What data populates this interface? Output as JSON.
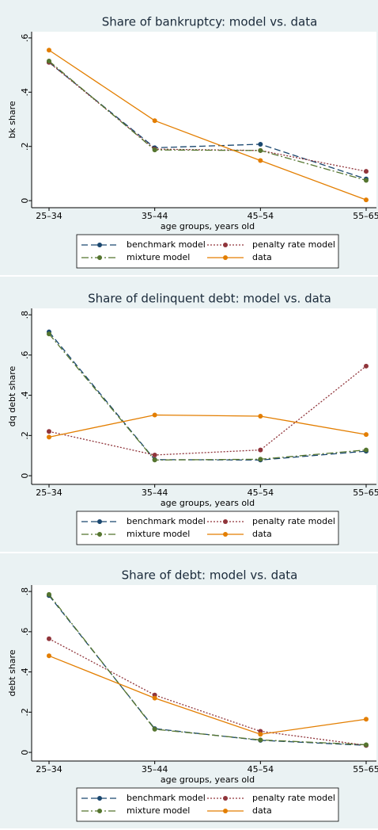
{
  "chart_data": [
    {
      "type": "line",
      "title": "Share of bankruptcy: model vs. data",
      "x_label": "age groups, years old",
      "y_label": "bk share",
      "categories": [
        "25–34",
        "35–44",
        "45–54",
        "55–65"
      ],
      "ylim": [
        -0.026,
        0.623
      ],
      "yticks": [
        0,
        {
          "value": 0.2,
          "label": ".2"
        },
        {
          "value": 0.4,
          "label": ".4"
        },
        {
          "value": 0.6,
          "label": ".6"
        }
      ],
      "series": [
        {
          "name": "benchmark model",
          "color": "#1a476f",
          "dash": "8 4",
          "values": [
            0.51,
            0.195,
            0.208,
            0.08
          ]
        },
        {
          "name": "penalty rate model",
          "color": "#90353b",
          "dash": "2 2",
          "values": [
            0.51,
            0.19,
            0.185,
            0.108
          ]
        },
        {
          "name": "mixture model",
          "color": "#55752f",
          "dash": "9 3 2 3",
          "values": [
            0.515,
            0.187,
            0.185,
            0.075
          ]
        },
        {
          "name": "data",
          "color": "#e37e00",
          "dash": "none",
          "values": [
            0.555,
            0.295,
            0.148,
            0.003
          ]
        }
      ]
    },
    {
      "type": "line",
      "title": "Share of delinquent debt: model vs. data",
      "x_label": "age groups, years old",
      "y_label": "dq debt share",
      "categories": [
        "25–34",
        "35–44",
        "45–54",
        "55–65"
      ],
      "ylim": [
        -0.043,
        0.832
      ],
      "yticks": [
        0,
        {
          "value": 0.2,
          "label": ".2"
        },
        {
          "value": 0.4,
          "label": ".4"
        },
        {
          "value": 0.6,
          "label": ".6"
        },
        {
          "value": 0.8,
          "label": ".8"
        }
      ],
      "series": [
        {
          "name": "benchmark model",
          "color": "#1a476f",
          "dash": "8 4",
          "values": [
            0.715,
            0.08,
            0.078,
            0.122
          ]
        },
        {
          "name": "penalty rate model",
          "color": "#90353b",
          "dash": "2 2",
          "values": [
            0.22,
            0.103,
            0.128,
            0.545
          ]
        },
        {
          "name": "mixture model",
          "color": "#55752f",
          "dash": "9 3 2 3",
          "values": [
            0.705,
            0.078,
            0.082,
            0.128
          ]
        },
        {
          "name": "data",
          "color": "#e37e00",
          "dash": "none",
          "values": [
            0.192,
            0.302,
            0.296,
            0.205
          ]
        }
      ]
    },
    {
      "type": "line",
      "title": "Share of debt: model vs. data",
      "x_label": "age groups, years old",
      "y_label": "debt share",
      "categories": [
        "25–34",
        "35–44",
        "45–54",
        "55–65"
      ],
      "ylim": [
        -0.043,
        0.832
      ],
      "yticks": [
        0,
        {
          "value": 0.2,
          "label": ".2"
        },
        {
          "value": 0.4,
          "label": ".4"
        },
        {
          "value": 0.6,
          "label": ".6"
        },
        {
          "value": 0.8,
          "label": ".8"
        }
      ],
      "series": [
        {
          "name": "benchmark model",
          "color": "#1a476f",
          "dash": "8 4",
          "values": [
            0.78,
            0.118,
            0.06,
            0.035
          ]
        },
        {
          "name": "penalty rate model",
          "color": "#90353b",
          "dash": "2 2",
          "values": [
            0.565,
            0.285,
            0.105,
            0.035
          ]
        },
        {
          "name": "mixture model",
          "color": "#55752f",
          "dash": "9 3 2 3",
          "values": [
            0.785,
            0.115,
            0.062,
            0.038
          ]
        },
        {
          "name": "data",
          "color": "#e37e00",
          "dash": "none",
          "values": [
            0.48,
            0.27,
            0.09,
            0.165
          ]
        }
      ]
    }
  ]
}
